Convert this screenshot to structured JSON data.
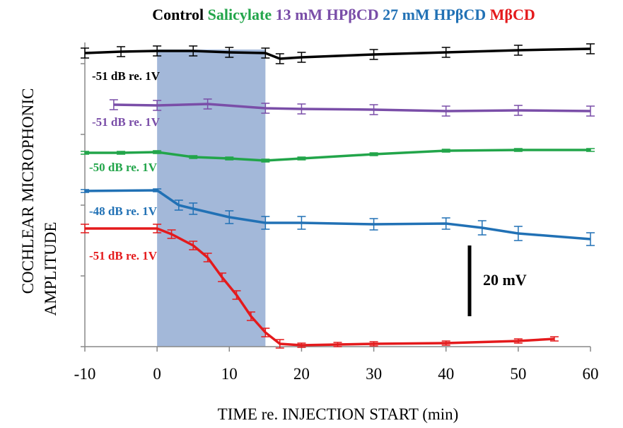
{
  "chart_data": {
    "type": "line",
    "legend_title": true,
    "xlabel": "TIME re. INJECTION START (min)",
    "ylabel": [
      "COCHLEAR MICROPHONIC",
      "AMPLITUDE"
    ],
    "xlim": [
      -10,
      60
    ],
    "xticks": [
      -10,
      0,
      10,
      20,
      30,
      40,
      50,
      60
    ],
    "ylim": [
      0,
      90
    ],
    "yticks": [
      0,
      20,
      40,
      60,
      80
    ],
    "highlight_x": [
      0,
      15
    ],
    "highlight_color": "#a3b8d9",
    "scale_bar": {
      "value": 20,
      "label": "20 mV"
    },
    "series": [
      {
        "name": "Control",
        "color": "#000000",
        "annotation": "-51 dB re. 1V",
        "x": [
          -10,
          -5,
          0,
          5,
          10,
          15,
          17,
          20,
          30,
          40,
          50,
          60
        ],
        "values": [
          83,
          83.4,
          83.6,
          83.6,
          83.2,
          83,
          81.4,
          81.8,
          82.6,
          83.2,
          83.8,
          84.2
        ],
        "errors": [
          1.4,
          1.4,
          1.4,
          1.4,
          1.4,
          1.4,
          1.4,
          1.4,
          1.4,
          1.4,
          1.4,
          1.4
        ]
      },
      {
        "name": "Salicylate",
        "color": "#22a54a",
        "annotation": "-50 dB re. 1V",
        "x": [
          -10,
          -5,
          0,
          5,
          10,
          15,
          20,
          30,
          40,
          50,
          60
        ],
        "values": [
          54.8,
          54.8,
          55,
          53.6,
          53.2,
          52.6,
          53.2,
          54.4,
          55.4,
          55.6,
          55.6
        ],
        "errors": [
          0.4,
          0.4,
          0.4,
          0.4,
          0.4,
          0.4,
          0.4,
          0.4,
          0.4,
          0.4,
          0.4
        ]
      },
      {
        "name": "13 mM HPβCD",
        "color": "#7a4ea8",
        "annotation": "-51 dB re. 1V",
        "x": [
          -6,
          0,
          7,
          15,
          20,
          30,
          40,
          50,
          60
        ],
        "values": [
          68.4,
          68.2,
          68.6,
          67.4,
          67.2,
          67,
          66.6,
          66.8,
          66.6
        ],
        "errors": [
          1.4,
          1.4,
          1.4,
          1.4,
          1.4,
          1.4,
          1.4,
          1.4,
          1.4
        ]
      },
      {
        "name": "27 mM HPβCD",
        "color": "#2171b5",
        "annotation": "-48 dB re. 1V",
        "x": [
          -10,
          0,
          3,
          5,
          10,
          15,
          20,
          30,
          40,
          45,
          50,
          60
        ],
        "values": [
          44,
          44.2,
          40,
          39,
          36.6,
          35,
          35,
          34.6,
          34.8,
          33.6,
          32,
          30.4
        ],
        "errors": [
          0.4,
          0.4,
          1.4,
          1.6,
          1.8,
          1.8,
          1.8,
          1.6,
          1.6,
          2,
          2,
          1.8
        ]
      },
      {
        "name": "MβCD",
        "color": "#e41a1c",
        "annotation": "-51 dB re. 1V",
        "x": [
          -10,
          0,
          2,
          5,
          7,
          9,
          11,
          13,
          15,
          17,
          20,
          25,
          30,
          40,
          50,
          55
        ],
        "values": [
          33.4,
          33.4,
          31.8,
          28.6,
          25.2,
          19.6,
          14.6,
          8.6,
          4,
          0.8,
          0.4,
          0.6,
          0.8,
          1,
          1.6,
          2.2
        ],
        "errors": [
          1.2,
          1.2,
          1.2,
          1.2,
          1.2,
          1.2,
          1.2,
          1.2,
          1.2,
          1.2,
          0.6,
          0.6,
          0.6,
          0.6,
          0.6,
          0.6
        ]
      }
    ]
  }
}
